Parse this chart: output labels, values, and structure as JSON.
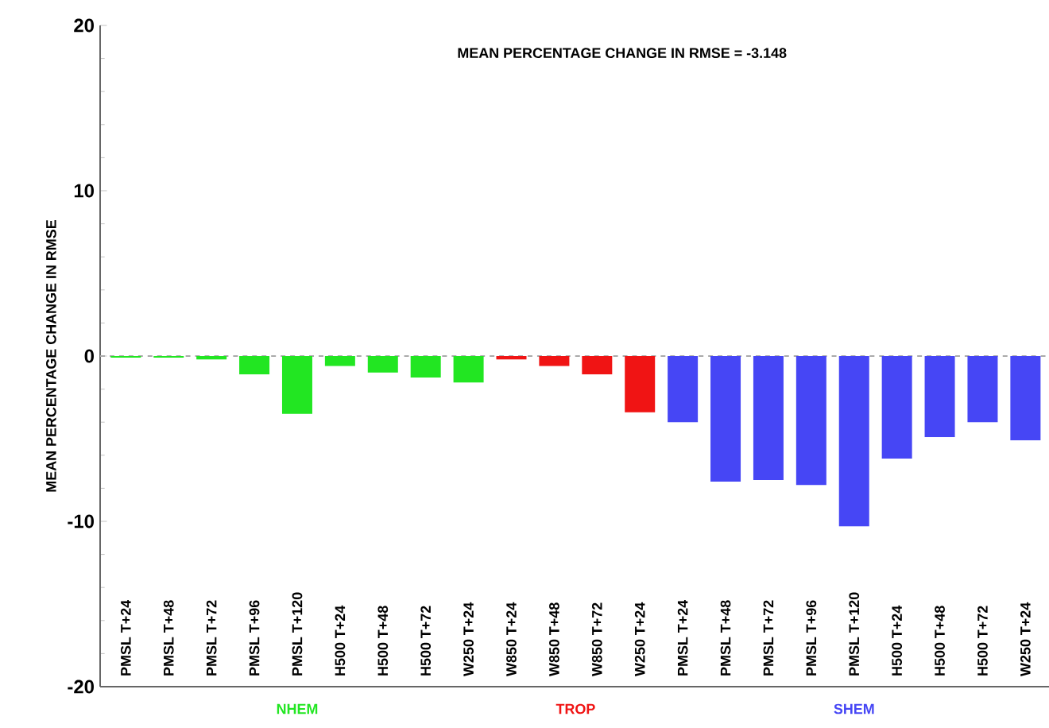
{
  "chart_data": {
    "type": "bar",
    "title": "MEAN PERCENTAGE CHANGE IN RMSE =   -3.148",
    "ylabel": "MEAN PERCENTAGE CHANGE IN RMSE",
    "categories": [
      "PMSL T+24",
      "PMSL T+48",
      "PMSL T+72",
      "PMSL T+96",
      "PMSL T+120",
      "H500 T+24",
      "H500 T+48",
      "H500 T+72",
      "W250 T+24",
      "W850 T+24",
      "W850 T+48",
      "W850 T+72",
      "W250 T+24",
      "PMSL T+24",
      "PMSL T+48",
      "PMSL T+72",
      "PMSL T+96",
      "PMSL T+120",
      "H500 T+24",
      "H500 T+48",
      "H500 T+72",
      "W250 T+24"
    ],
    "series": [
      {
        "name": "NHEM",
        "color": "#22e622",
        "values": [
          -0.1,
          -0.1,
          -0.2,
          -1.1,
          -3.5,
          -0.6,
          -1.0,
          -1.3,
          -1.6,
          null,
          null,
          null,
          null,
          null,
          null,
          null,
          null,
          null,
          null,
          null,
          null,
          null
        ]
      },
      {
        "name": "TROP",
        "color": "#f01414",
        "values": [
          null,
          null,
          null,
          null,
          null,
          null,
          null,
          null,
          null,
          -0.2,
          -0.6,
          -1.1,
          -3.4,
          null,
          null,
          null,
          null,
          null,
          null,
          null,
          null,
          null
        ]
      },
      {
        "name": "SHEM",
        "color": "#4646f5",
        "values": [
          null,
          null,
          null,
          null,
          null,
          null,
          null,
          null,
          null,
          null,
          null,
          null,
          null,
          -4.0,
          -7.6,
          -7.5,
          -7.8,
          -10.3,
          -6.2,
          -4.9,
          -4.0,
          -5.1
        ]
      }
    ],
    "ylim": [
      -20,
      20
    ],
    "yticks": [
      -20,
      -10,
      0,
      10,
      20
    ],
    "ref_lines": [
      {
        "axis": "y",
        "value": 0,
        "color": "#aaaaaa",
        "line_style": "dashed"
      }
    ]
  }
}
